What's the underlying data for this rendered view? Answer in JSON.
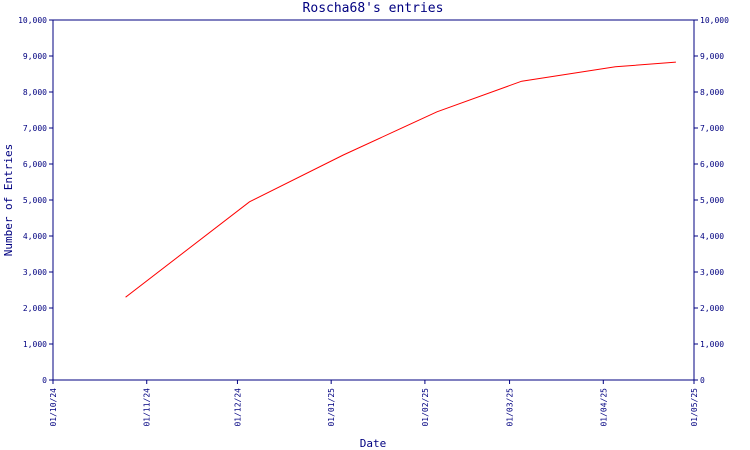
{
  "chart_data": {
    "type": "line",
    "title": "Roscha68's entries",
    "xlabel": "Date",
    "ylabel": "Number of Entries",
    "x_ticks": [
      "01/10/24",
      "01/11/24",
      "01/12/24",
      "01/01/25",
      "01/02/25",
      "01/03/25",
      "01/04/25",
      "01/05/25"
    ],
    "y_ticks": [
      "0",
      "1,000",
      "2,000",
      "3,000",
      "4,000",
      "5,000",
      "6,000",
      "7,000",
      "8,000",
      "9,000",
      "10,000"
    ],
    "ylim": [
      0,
      10000
    ],
    "xlim": [
      "2024-10-01",
      "2025-05-01"
    ],
    "grid": false,
    "series": [
      {
        "color": "#ff0000",
        "x": [
          "2024-10-25",
          "2024-12-05",
          "2025-01-05",
          "2025-02-05",
          "2025-03-05",
          "2025-04-05",
          "2025-04-25"
        ],
        "values": [
          2300,
          4950,
          6250,
          7450,
          8300,
          8700,
          8830
        ]
      }
    ]
  }
}
